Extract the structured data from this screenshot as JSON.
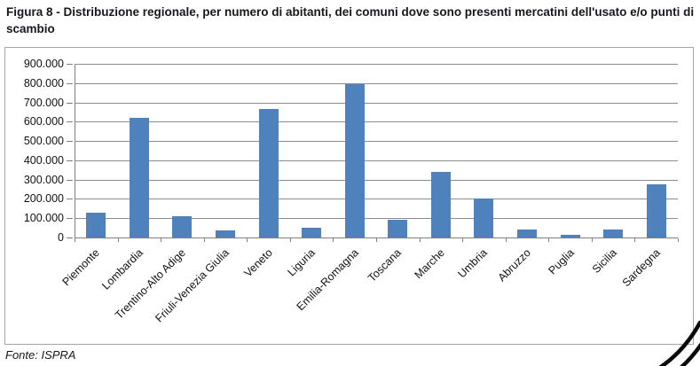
{
  "figure": {
    "title": "Figura 8 - Distribuzione regionale, per numero di abitanti, dei comuni dove sono presenti mercatini dell'usato e/o punti di scambio",
    "source": "Fonte: ISPRA"
  },
  "chart_data": {
    "type": "bar",
    "title": "",
    "xlabel": "",
    "ylabel": "",
    "categories": [
      "Piemonte",
      "Lombardia",
      "Trentino-Alto Adige",
      "Friuli-Venezia Giulia",
      "Veneto",
      "Liguria",
      "Emilia-Romagna",
      "Toscana",
      "Marche",
      "Umbria",
      "Abruzzo",
      "Puglia",
      "Sicilia",
      "Sardegna"
    ],
    "values": [
      130000,
      620000,
      110000,
      35000,
      665000,
      50000,
      795000,
      90000,
      340000,
      200000,
      40000,
      15000,
      40000,
      275000
    ],
    "ylim": [
      0,
      900000
    ],
    "ytick_interval": 100000,
    "ytick_labels": [
      "0",
      "100.000",
      "200.000",
      "300.000",
      "400.000",
      "500.000",
      "600.000",
      "700.000",
      "800.000",
      "900.000"
    ],
    "grid": true,
    "legend_position": "none",
    "bar_color": "#4F81BD",
    "gridline_color": "#8c8c8c",
    "axis_color": "#7f7f7f",
    "frame_border_color": "#a6a6a6"
  },
  "annotations": {
    "pen_mark": "hand-drawn double diagonal stroke over bottom-right corner",
    "pen_mark_color": "#0b0b0b"
  }
}
